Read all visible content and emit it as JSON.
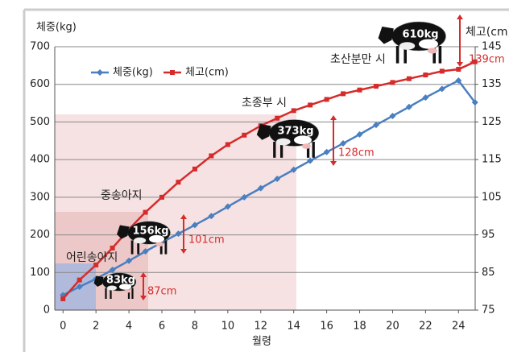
{
  "chart_data": {
    "type": "line",
    "y_label": "체중(kg)",
    "y2_label": "체고(cm)",
    "x_label": "월령",
    "x": [
      0,
      1,
      2,
      3,
      4,
      5,
      6,
      7,
      8,
      9,
      10,
      11,
      12,
      13,
      14,
      15,
      16,
      17,
      18,
      19,
      20,
      21,
      22,
      23,
      24,
      25
    ],
    "xlim": [
      -0.5,
      25.5
    ],
    "xticks": [
      0,
      2,
      4,
      6,
      8,
      10,
      12,
      14,
      16,
      18,
      20,
      22,
      24
    ],
    "ylim": [
      0,
      700
    ],
    "yticks": [
      0,
      100,
      200,
      300,
      400,
      500,
      600,
      700
    ],
    "y2lim": [
      75,
      145
    ],
    "y2ticks": [
      75,
      85,
      95,
      105,
      115,
      125,
      135,
      145
    ],
    "grid": true,
    "legend": "top-left",
    "series": [
      {
        "name": "체중(kg)",
        "color": "#4a7fc0",
        "marker": "diamond",
        "values": [
          40,
          62,
          83,
          107,
          131,
          156,
          180,
          203,
          226,
          250,
          275,
          300,
          324,
          349,
          373,
          397,
          420,
          443,
          467,
          492,
          516,
          540,
          565,
          588,
          610,
          552
        ]
      },
      {
        "name": "체고(cm)",
        "color": "#d62b2b",
        "marker": "square",
        "axis": "y2",
        "values": [
          78,
          83,
          87,
          91.5,
          96.5,
          101,
          105,
          109,
          112.5,
          116,
          119,
          121.5,
          124,
          126,
          128,
          129.5,
          131,
          132.5,
          133.5,
          134.5,
          135.5,
          136.5,
          137.5,
          138.5,
          139,
          141
        ]
      }
    ],
    "annotations": [
      {
        "stage": "어린송아지",
        "weight": "83kg",
        "height": "87cm"
      },
      {
        "stage": "중송아지",
        "weight": "156kg",
        "height": "101cm"
      },
      {
        "stage": "초종부 시",
        "weight": "373kg",
        "height": "128cm"
      },
      {
        "stage": "초산분만 시",
        "weight": "610kg",
        "height": "139cm"
      }
    ]
  }
}
